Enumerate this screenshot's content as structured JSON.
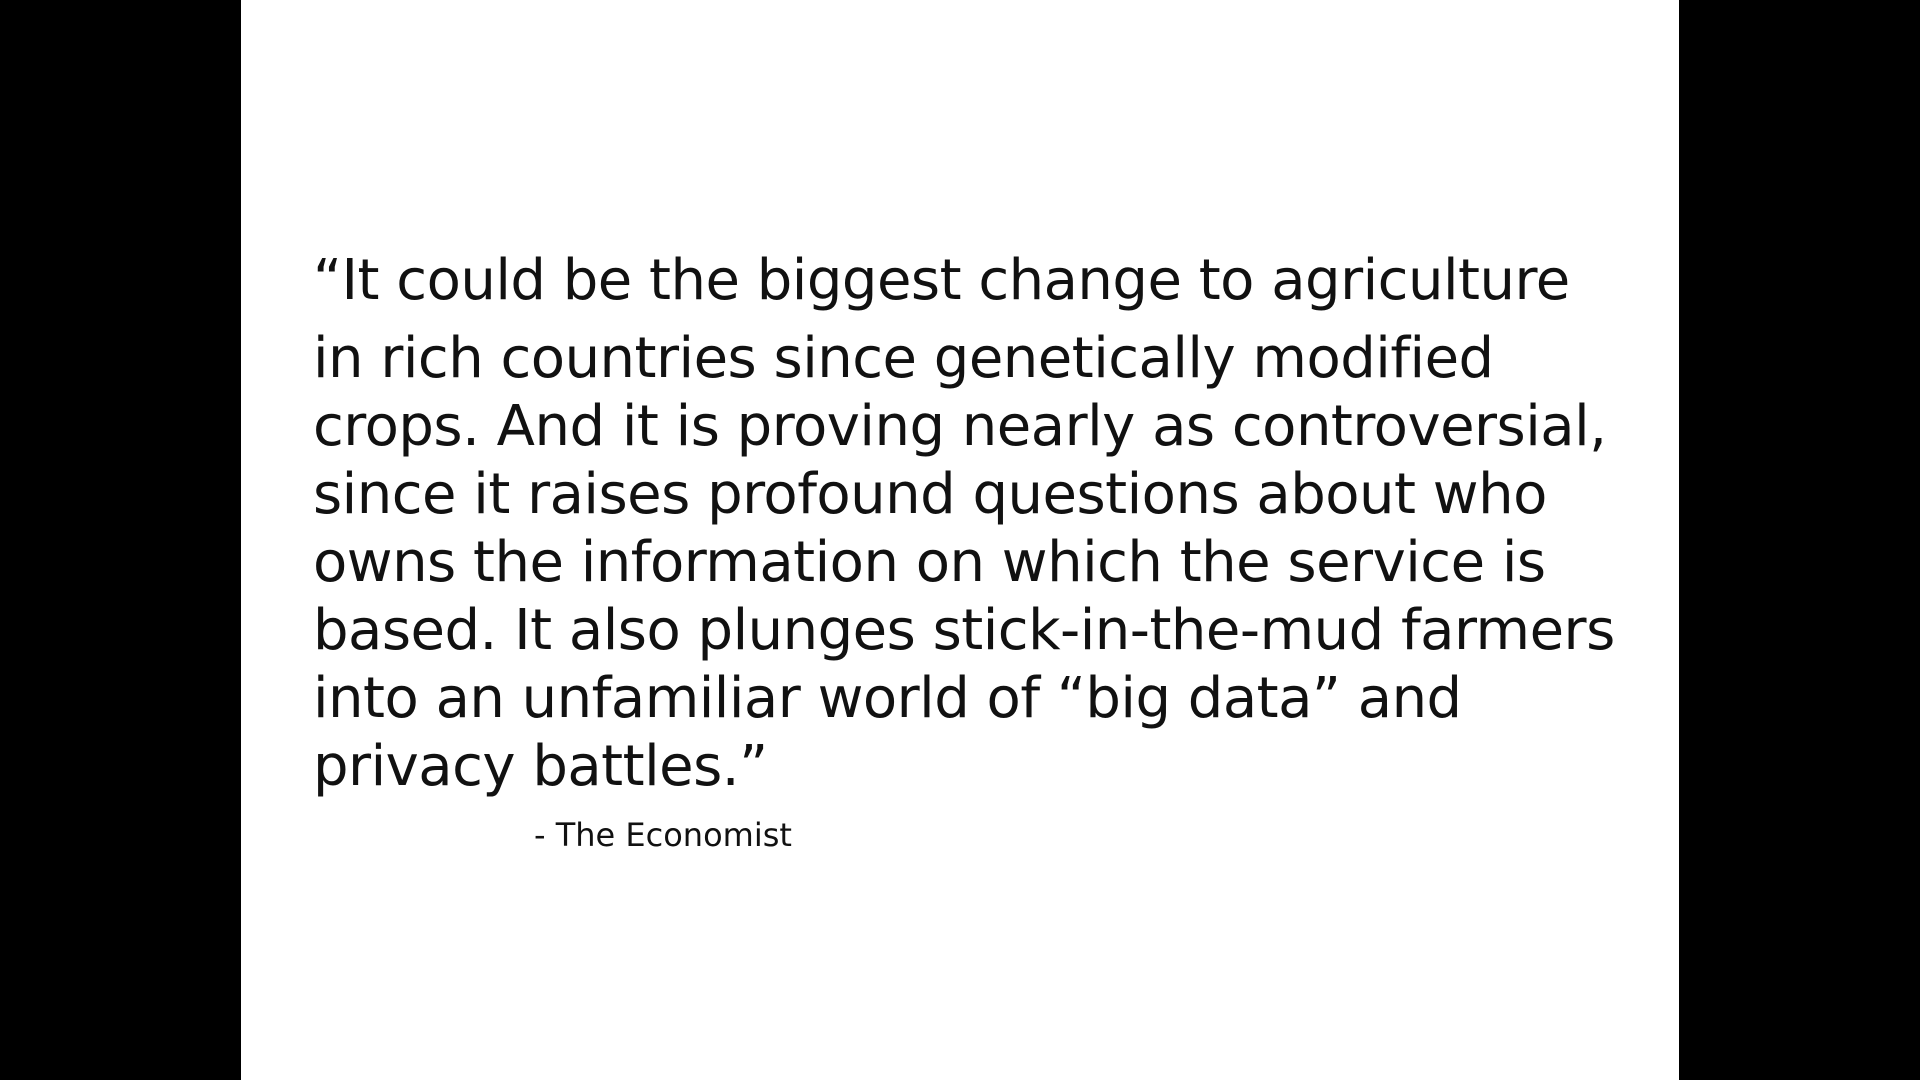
{
  "colors": {
    "background": "#000000",
    "slide": "#ffffff",
    "text": "#111111"
  },
  "slide": {
    "quote_lines": [
      "“It could be the biggest change to agriculture",
      "in rich countries since genetically modified",
      "crops. And it is proving nearly as controversial,",
      "since it raises profound questions about who",
      "owns the information on which the service is",
      "based. It also plunges stick-in-the-mud farmers",
      "into an unfamiliar world of “big data” and",
      "privacy battles.”"
    ],
    "attribution": "- The Economist"
  }
}
